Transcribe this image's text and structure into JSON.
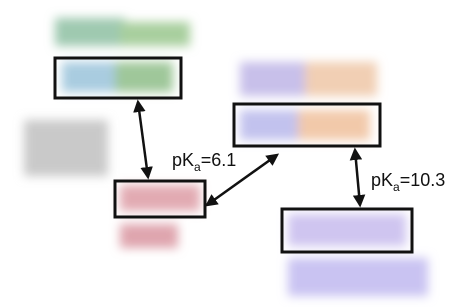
{
  "edges": [
    {
      "label": {
        "base": "pK",
        "subscript": "a",
        "rest": "=6.1"
      }
    },
    {
      "label": {
        "base": "pK",
        "subscript": "a",
        "rest": "=10.3"
      }
    }
  ]
}
